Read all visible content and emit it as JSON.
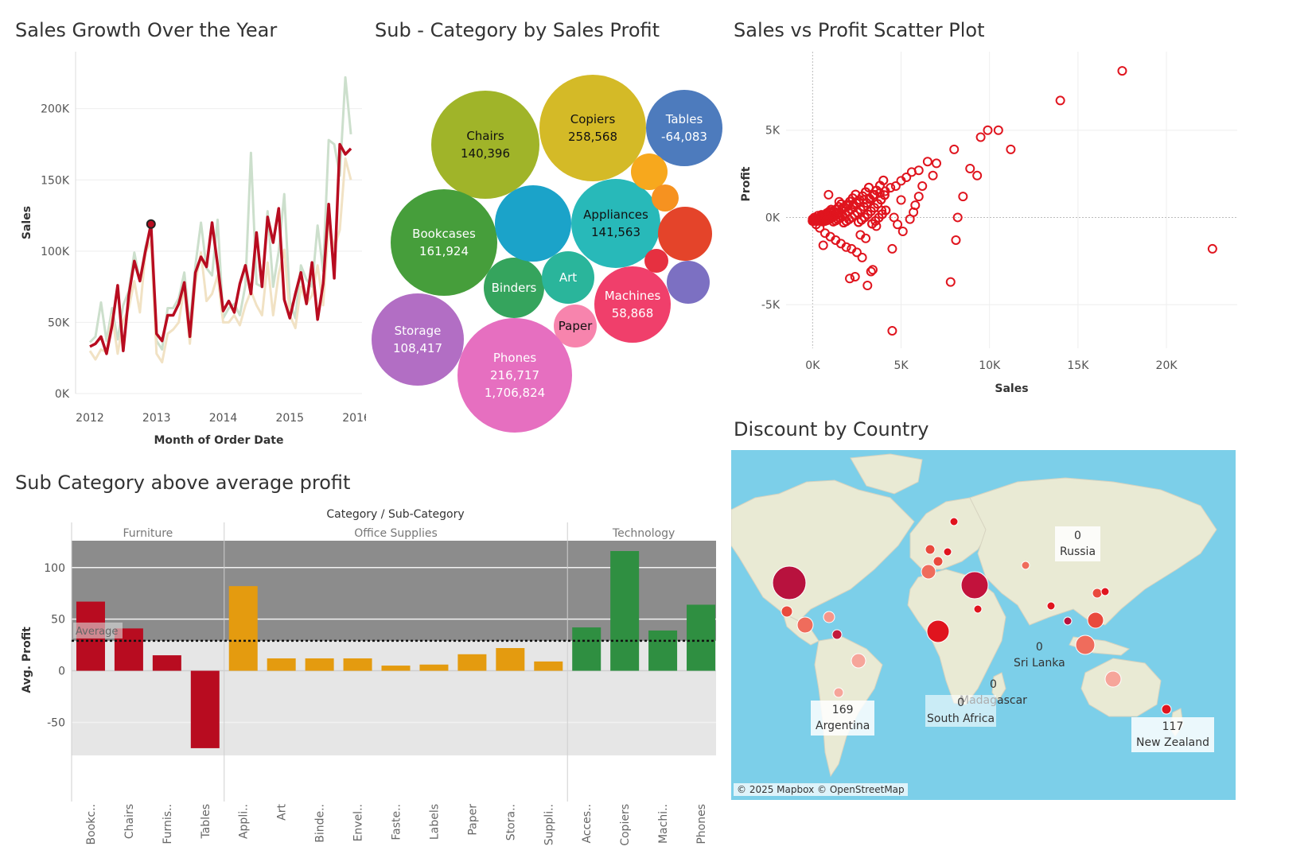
{
  "chart_data": [
    {
      "type": "line",
      "title": "Sales Growth Over the Year",
      "xlabel": "Month of Order Date",
      "ylabel": "Sales",
      "ylim": [
        0,
        240000
      ],
      "xlim": [
        "2012-01",
        "2016-02"
      ],
      "x_ticks": [
        "2012",
        "2013",
        "2014",
        "2015",
        "2016"
      ],
      "y_ticks": [
        {
          "v": 0,
          "label": "0K"
        },
        {
          "v": 50000,
          "label": "50K"
        },
        {
          "v": 100000,
          "label": "100K"
        },
        {
          "v": 150000,
          "label": "150K"
        },
        {
          "v": 200000,
          "label": "200K"
        }
      ],
      "grid": true,
      "highlight_point": {
        "x": "2012-12",
        "y": 119000
      },
      "x": [
        "2012-01",
        "2012-02",
        "2012-03",
        "2012-04",
        "2012-05",
        "2012-06",
        "2012-07",
        "2012-08",
        "2012-09",
        "2012-10",
        "2012-11",
        "2012-12",
        "2013-01",
        "2013-02",
        "2013-03",
        "2013-04",
        "2013-05",
        "2013-06",
        "2013-07",
        "2013-08",
        "2013-09",
        "2013-10",
        "2013-11",
        "2013-12",
        "2014-01",
        "2014-02",
        "2014-03",
        "2014-04",
        "2014-05",
        "2014-06",
        "2014-07",
        "2014-08",
        "2014-09",
        "2014-10",
        "2014-11",
        "2014-12",
        "2015-01",
        "2015-02",
        "2015-03",
        "2015-04",
        "2015-05",
        "2015-06",
        "2015-07",
        "2015-08",
        "2015-09",
        "2015-10",
        "2015-11",
        "2015-12"
      ],
      "series": [
        {
          "color": "#ccdfcc",
          "values": [
            36000,
            40000,
            64000,
            37000,
            60000,
            38000,
            62000,
            72000,
            99000,
            79000,
            103000,
            115000,
            37000,
            31000,
            60000,
            60000,
            67000,
            85000,
            48000,
            90000,
            120000,
            88000,
            83000,
            122000,
            53000,
            60000,
            63000,
            55000,
            76000,
            169000,
            77000,
            75000,
            128000,
            75000,
            100000,
            140000,
            65000,
            53000,
            90000,
            80000,
            75000,
            118000,
            86000,
            178000,
            175000,
            153000,
            222000,
            182000
          ]
        },
        {
          "color": "#f1e2c4",
          "values": [
            30000,
            24000,
            31000,
            29000,
            55000,
            28000,
            51000,
            60000,
            79000,
            57000,
            99000,
            107000,
            28000,
            22000,
            42000,
            45000,
            50000,
            75000,
            35000,
            78000,
            99000,
            65000,
            70000,
            83000,
            50000,
            50000,
            55000,
            48000,
            62000,
            72000,
            62000,
            55000,
            92000,
            55000,
            84000,
            101000,
            55000,
            46000,
            75000,
            63000,
            69000,
            90000,
            62000,
            120000,
            102000,
            115000,
            165000,
            150000
          ]
        },
        {
          "color": "#b80c20",
          "values": [
            33000,
            35000,
            40000,
            28000,
            48000,
            76000,
            30000,
            69000,
            93000,
            79000,
            100000,
            119000,
            42000,
            37000,
            55000,
            55000,
            63000,
            78000,
            40000,
            85000,
            96000,
            89000,
            120000,
            90000,
            58000,
            65000,
            57000,
            77000,
            90000,
            70000,
            113000,
            75000,
            124000,
            106000,
            130000,
            66000,
            53000,
            70000,
            85000,
            63000,
            92000,
            52000,
            77000,
            133000,
            81000,
            175000,
            168000,
            172000
          ]
        }
      ]
    },
    {
      "type": "bubble",
      "title": "Sub - Category by Sales Profit",
      "bubbles": [
        {
          "name": "Chairs",
          "value": "140,396",
          "color": "#a0b429"
        },
        {
          "name": "Copiers",
          "value": "258,568",
          "color": "#d4ba27"
        },
        {
          "name": "Tables",
          "value": "-64,083",
          "color": "#4d7bbd"
        },
        {
          "name": "Bookcases",
          "value": "161,924",
          "color": "#469e3b"
        },
        {
          "name": "Appliances",
          "value": "141,563",
          "color": "#28b9b9"
        },
        {
          "name": "Binders",
          "value": "",
          "color": "#35a45d"
        },
        {
          "name": "Art",
          "value": "",
          "color": "#2ab59b"
        },
        {
          "name": "Machines",
          "value": "58,868",
          "color": "#f03f6b"
        },
        {
          "name": "Paper",
          "value": "",
          "color": "#f784ad"
        },
        {
          "name": "Storage",
          "value": "108,417",
          "color": "#b26ec4"
        },
        {
          "name": "Phones",
          "value": "216,717",
          "extra": "1,706,824",
          "color": "#e66fc0"
        },
        {
          "name": "",
          "value": "",
          "color": "#1ba3c9"
        },
        {
          "name": "",
          "value": "",
          "color": "#f7a81d"
        },
        {
          "name": "",
          "value": "",
          "color": "#f69220"
        },
        {
          "name": "",
          "value": "",
          "color": "#e4442a"
        },
        {
          "name": "",
          "value": "",
          "color": "#e63040"
        },
        {
          "name": "",
          "value": "",
          "color": "#7c70c2"
        }
      ]
    },
    {
      "type": "scatter",
      "title": "Sales vs Profit Scatter Plot",
      "xlabel": "Sales",
      "ylabel": "Profit",
      "xlim": [
        -1500,
        24000
      ],
      "ylim": [
        -7500,
        9500
      ],
      "x_ticks": [
        {
          "v": 0,
          "label": "0K"
        },
        {
          "v": 5000,
          "label": "5K"
        },
        {
          "v": 10000,
          "label": "10K"
        },
        {
          "v": 15000,
          "label": "15K"
        },
        {
          "v": 20000,
          "label": "20K"
        }
      ],
      "y_ticks": [
        {
          "v": -5000,
          "label": "-5K"
        },
        {
          "v": 0,
          "label": "0K"
        },
        {
          "v": 5000,
          "label": "5K"
        }
      ],
      "color": "#e0141e",
      "points": [
        [
          17500,
          8400
        ],
        [
          14000,
          6700
        ],
        [
          10500,
          5000
        ],
        [
          9900,
          5000
        ],
        [
          9500,
          4600
        ],
        [
          11200,
          3900
        ],
        [
          8000,
          3900
        ],
        [
          8900,
          2800
        ],
        [
          9300,
          2400
        ],
        [
          7000,
          3100
        ],
        [
          6500,
          3200
        ],
        [
          6800,
          2400
        ],
        [
          6000,
          2700
        ],
        [
          5600,
          2600
        ],
        [
          5300,
          2300
        ],
        [
          5000,
          2100
        ],
        [
          4700,
          1800
        ],
        [
          4400,
          1700
        ],
        [
          4100,
          1500
        ],
        [
          3800,
          1400
        ],
        [
          3500,
          1300
        ],
        [
          3200,
          1100
        ],
        [
          2900,
          1000
        ],
        [
          2600,
          900
        ],
        [
          2300,
          750
        ],
        [
          2000,
          650
        ],
        [
          1700,
          550
        ],
        [
          1400,
          450
        ],
        [
          1100,
          350
        ],
        [
          800,
          250
        ],
        [
          500,
          150
        ],
        [
          300,
          100
        ],
        [
          100,
          0
        ],
        [
          0,
          -100
        ],
        [
          200,
          -400
        ],
        [
          400,
          -600
        ],
        [
          700,
          -900
        ],
        [
          1000,
          -1100
        ],
        [
          1300,
          -1300
        ],
        [
          1600,
          -1500
        ],
        [
          1900,
          -1700
        ],
        [
          2200,
          -1800
        ],
        [
          2500,
          -2000
        ],
        [
          2800,
          -2300
        ],
        [
          3400,
          -3000
        ],
        [
          3300,
          -3100
        ],
        [
          2400,
          -3400
        ],
        [
          2100,
          -3500
        ],
        [
          3100,
          -3900
        ],
        [
          4500,
          -1800
        ],
        [
          5100,
          -800
        ],
        [
          4800,
          -400
        ],
        [
          5500,
          -100
        ],
        [
          5700,
          300
        ],
        [
          5800,
          700
        ],
        [
          6000,
          1200
        ],
        [
          7800,
          -3700
        ],
        [
          8200,
          0
        ],
        [
          8100,
          -1300
        ],
        [
          8500,
          1200
        ],
        [
          22600,
          -1800
        ],
        [
          4500,
          -6500
        ],
        [
          6200,
          1800
        ],
        [
          5000,
          1000
        ],
        [
          4600,
          0
        ],
        [
          3900,
          400
        ],
        [
          3600,
          -500
        ],
        [
          3000,
          -1200
        ],
        [
          2700,
          -1000
        ],
        [
          1500,
          900
        ],
        [
          900,
          1300
        ],
        [
          600,
          -1600
        ]
      ]
    },
    {
      "type": "bar",
      "title": "Sub Category above average profit",
      "column_title": "Category / Sub-Category",
      "ylabel": "Avg. Profit",
      "ylim": [
        -82,
        126
      ],
      "y_ticks": [
        {
          "v": -50,
          "label": "-50"
        },
        {
          "v": 0,
          "label": "0"
        },
        {
          "v": 50,
          "label": "50"
        },
        {
          "v": 100,
          "label": "100"
        }
      ],
      "average": 29,
      "average_label": "Average",
      "groups": [
        {
          "name": "Furniture",
          "color": "#b80c20",
          "categories": [
            "Bookc..",
            "Chairs",
            "Furnis..",
            "Tables"
          ],
          "values": [
            67,
            41,
            15,
            -75
          ]
        },
        {
          "name": "Office Supplies",
          "color": "#e49b0f",
          "categories": [
            "Appli..",
            "Art",
            "Binde..",
            "Envel..",
            "Faste..",
            "Labels",
            "Paper",
            "Stora..",
            "Suppli.."
          ],
          "values": [
            82,
            12,
            12,
            12,
            5,
            6,
            16,
            22,
            9
          ]
        },
        {
          "name": "Technology",
          "color": "#2f8f41",
          "categories": [
            "Acces..",
            "Copiers",
            "Machi..",
            "Phones"
          ],
          "values": [
            42,
            116,
            39,
            64
          ]
        }
      ]
    }
  ],
  "map": {
    "title": "Discount by Country",
    "credit": "© 2025 Mapbox © OpenStreetMap",
    "labels": [
      {
        "value": "0",
        "country": "Russia"
      },
      {
        "value": "0",
        "country": "Sri Lanka"
      },
      {
        "value": "0",
        "country": "Madagascar"
      },
      {
        "value": "0",
        "country": "South Africa"
      },
      {
        "value": "169",
        "country": "Argentina"
      },
      {
        "value": "117",
        "country": "New Zealand"
      }
    ]
  }
}
